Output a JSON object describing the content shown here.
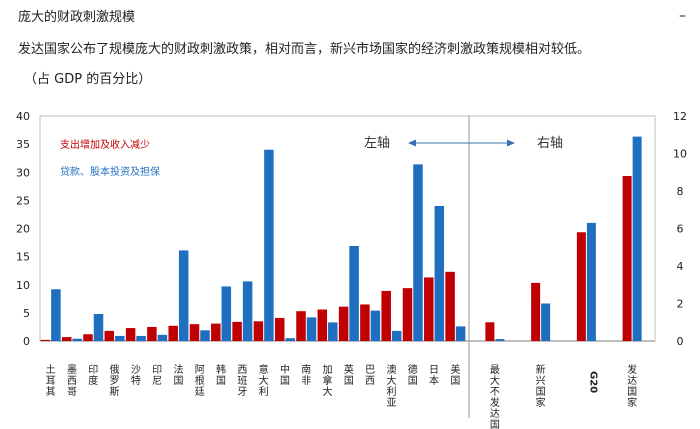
{
  "header": {
    "title": "庞大的财政刺激规模",
    "description": "发达国家公布了规模庞大的财政刺激政策，相对而言，新兴市场国家的经济刺激政策规模相对较低。",
    "unit": "（占 GDP 的百分比）",
    "corner_mark": "–"
  },
  "chart_data": {
    "type": "bar",
    "title": "",
    "series": [
      {
        "name": "支出增加及收入减少",
        "color": "#c00000"
      },
      {
        "name": "贷款、股本投资及担保",
        "color": "#1f6fc0"
      }
    ],
    "left_panel": {
      "axis_label": "左轴",
      "ylim": [
        0,
        40
      ],
      "yticks": [
        0,
        5,
        10,
        15,
        20,
        25,
        30,
        35,
        40
      ],
      "categories": [
        "土耳其",
        "墨西哥",
        "印度",
        "俄罗斯",
        "沙特",
        "印尼",
        "法国",
        "阿根廷",
        "韩国",
        "西班牙",
        "意大利",
        "中国",
        "南非",
        "加拿大",
        "英国",
        "巴西",
        "澳大利亚",
        "德国",
        "日本",
        "美国"
      ],
      "values": {
        "spending": [
          0.2,
          0.7,
          1.2,
          1.8,
          2.3,
          2.5,
          2.7,
          3.0,
          3.1,
          3.4,
          3.5,
          4.1,
          5.3,
          5.6,
          6.1,
          6.5,
          8.9,
          9.4,
          11.3,
          12.3
        ],
        "loans": [
          9.2,
          0.4,
          4.8,
          0.9,
          0.9,
          1.1,
          16.1,
          1.9,
          9.7,
          10.6,
          34.0,
          0.5,
          4.2,
          3.3,
          16.9,
          5.4,
          1.8,
          31.4,
          24.0,
          2.6
        ]
      }
    },
    "right_panel": {
      "axis_label": "右轴",
      "ylim": [
        0,
        12
      ],
      "yticks": [
        0,
        2,
        4,
        6,
        8,
        10,
        12
      ],
      "categories": [
        "最大不发达国",
        "新兴国家",
        "G20",
        "发达国家"
      ],
      "values": {
        "spending": [
          1.0,
          3.1,
          5.8,
          8.8
        ],
        "loans": [
          0.1,
          2.0,
          6.3,
          10.9
        ]
      }
    }
  }
}
